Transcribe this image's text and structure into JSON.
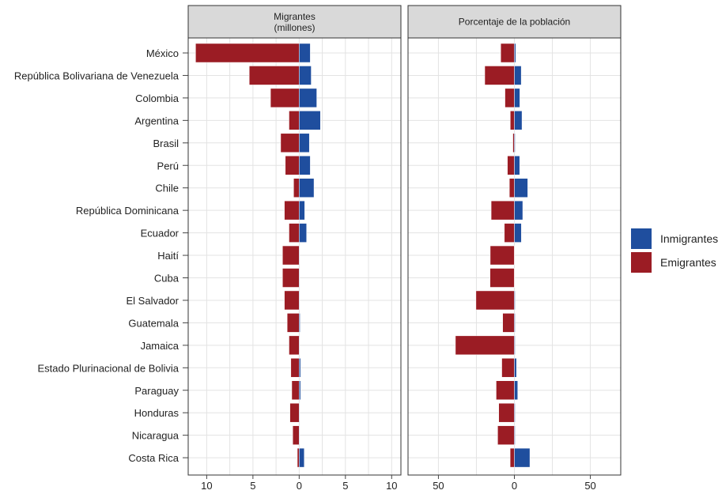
{
  "chart_data": {
    "type": "bar",
    "orientation": "horizontal",
    "categories": [
      "México",
      "República Bolivariana de Venezuela",
      "Colombia",
      "Argentina",
      "Brasil",
      "Perú",
      "Chile",
      "República Dominicana",
      "Ecuador",
      "Haití",
      "Cuba",
      "El Salvador",
      "Guatemala",
      "Jamaica",
      "Estado Plurinacional de Bolivia",
      "Paraguay",
      "Honduras",
      "Nicaragua",
      "Costa Rica"
    ],
    "legend": {
      "placement": "right",
      "items": [
        {
          "label": "Inmigrantes",
          "color": "#1f4e9e"
        },
        {
          "label": "Emigrantes",
          "color": "#9b1c24"
        }
      ]
    },
    "panels": [
      {
        "title": "Migrantes\n(millones)",
        "xlim": [
          -12,
          11
        ],
        "ticks": [
          10,
          5,
          0,
          5,
          10
        ],
        "tick_values": [
          -10,
          -5,
          0,
          5,
          10
        ],
        "grid": true,
        "series": [
          {
            "name": "Inmigrantes",
            "color": "#1f4e9e",
            "values": [
              1.2,
              1.3,
              1.9,
              2.3,
              1.1,
              1.2,
              1.6,
              0.6,
              0.8,
              0.05,
              0.05,
              0.05,
              0.1,
              0.05,
              0.15,
              0.15,
              0.05,
              0.05,
              0.55
            ]
          },
          {
            "name": "Emigrantes",
            "color": "#9b1c24",
            "values": [
              11.2,
              5.4,
              3.1,
              1.1,
              2.0,
              1.5,
              0.6,
              1.6,
              1.1,
              1.8,
              1.8,
              1.6,
              1.3,
              1.1,
              0.9,
              0.8,
              1.0,
              0.7,
              0.2
            ]
          }
        ]
      },
      {
        "title": "Porcentaje de la población",
        "xlim": [
          -70,
          70
        ],
        "ticks": [
          50,
          0,
          50
        ],
        "tick_values": [
          -50,
          0,
          50
        ],
        "grid": true,
        "series": [
          {
            "name": "Inmigrantes",
            "color": "#1f4e9e",
            "values": [
              0.9,
              4.5,
              3.6,
              5.0,
              0.5,
              3.5,
              8.8,
              5.5,
              4.6,
              0.2,
              0.2,
              0.5,
              0.5,
              0.5,
              1.4,
              2.2,
              0.5,
              0.5,
              10.2
            ]
          },
          {
            "name": "Emigrantes",
            "color": "#9b1c24",
            "values": [
              9.0,
              19.5,
              6.2,
              2.7,
              1.0,
              4.6,
              3.3,
              15.3,
              6.6,
              15.9,
              16.0,
              25.3,
              7.7,
              38.8,
              8.3,
              12.0,
              10.3,
              11.0,
              2.8
            ]
          }
        ]
      }
    ]
  }
}
